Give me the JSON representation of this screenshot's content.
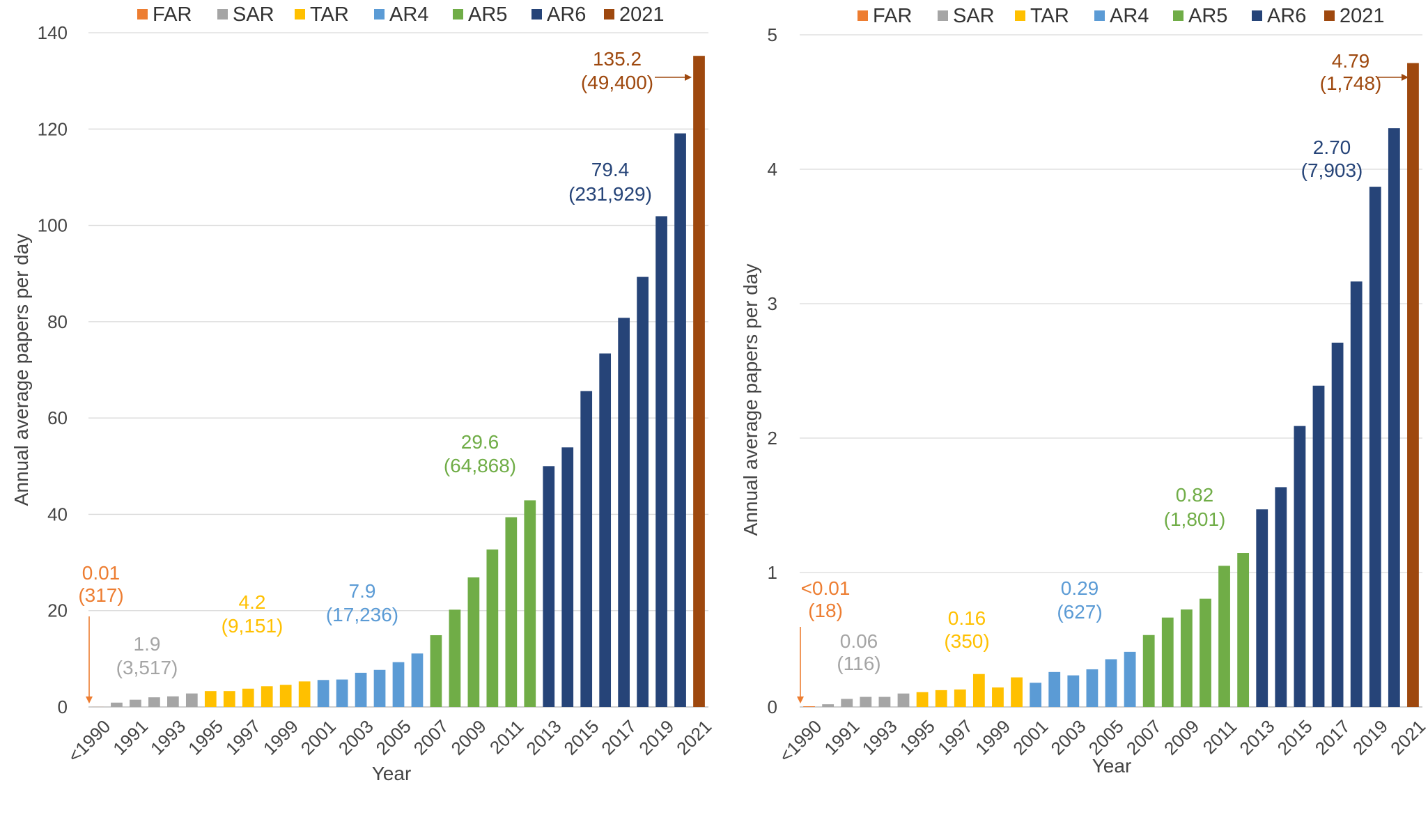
{
  "chart_data": [
    {
      "type": "bar",
      "panel": "left",
      "xlabel": "Year",
      "ylabel": "Annual average papers  per day",
      "ylim": [
        0,
        140
      ],
      "yticks": [
        0,
        20,
        40,
        60,
        80,
        100,
        120,
        140
      ],
      "grid": true,
      "legend_position": "top",
      "legend": [
        "FAR",
        "SAR",
        "TAR",
        "AR4",
        "AR5",
        "AR6",
        "2021"
      ],
      "x_tick_labels": [
        "<1990",
        "1991",
        "1993",
        "1995",
        "1997",
        "1999",
        "2001",
        "2003",
        "2005",
        "2007",
        "2009",
        "2011",
        "2013",
        "2015",
        "2017",
        "2019",
        "2021"
      ],
      "categories": [
        "<1990",
        "1990",
        "1991",
        "1992",
        "1993",
        "1994",
        "1995",
        "1996",
        "1997",
        "1998",
        "1999",
        "2000",
        "2001",
        "2002",
        "2003",
        "2004",
        "2005",
        "2006",
        "2007",
        "2008",
        "2009",
        "2010",
        "2011",
        "2012",
        "2013",
        "2014",
        "2015",
        "2016",
        "2017",
        "2018",
        "2019",
        "2020",
        "2021"
      ],
      "values": [
        0.01,
        0.9,
        1.5,
        2.0,
        2.2,
        2.8,
        3.3,
        3.3,
        3.8,
        4.3,
        4.6,
        5.3,
        5.6,
        5.7,
        7.1,
        7.7,
        9.3,
        11.1,
        14.9,
        20.2,
        26.9,
        32.7,
        39.4,
        42.9,
        50.0,
        53.9,
        65.6,
        73.4,
        80.8,
        89.3,
        101.9,
        119.1,
        135.2
      ],
      "groups": [
        "FAR",
        "SAR",
        "SAR",
        "SAR",
        "SAR",
        "SAR",
        "TAR",
        "TAR",
        "TAR",
        "TAR",
        "TAR",
        "TAR",
        "AR4",
        "AR4",
        "AR4",
        "AR4",
        "AR4",
        "AR4",
        "AR5",
        "AR5",
        "AR5",
        "AR5",
        "AR5",
        "AR5",
        "AR6",
        "AR6",
        "AR6",
        "AR6",
        "AR6",
        "AR6",
        "AR6",
        "AR6",
        "2021"
      ],
      "annotations": [
        {
          "group": "FAR",
          "value": "0.01",
          "count": "(317)"
        },
        {
          "group": "SAR",
          "value": "1.9",
          "count": "(3,517)"
        },
        {
          "group": "TAR",
          "value": "4.2",
          "count": "(9,151)"
        },
        {
          "group": "AR4",
          "value": "7.9",
          "count": "(17,236)"
        },
        {
          "group": "AR5",
          "value": "29.6",
          "count": "(64,868)"
        },
        {
          "group": "AR6",
          "value": "79.4",
          "count": "(231,929)"
        },
        {
          "group": "2021",
          "value": "135.2",
          "count": "(49,400)"
        }
      ]
    },
    {
      "type": "bar",
      "panel": "right",
      "xlabel": "Year",
      "ylabel": "Annual average papers per day",
      "ylim": [
        0,
        5
      ],
      "yticks": [
        0,
        1,
        2,
        3,
        4,
        5
      ],
      "grid": true,
      "legend_position": "top",
      "legend": [
        "FAR",
        "SAR",
        "TAR",
        "AR4",
        "AR5",
        "AR6",
        "2021"
      ],
      "x_tick_labels": [
        "<1990",
        "1991",
        "1993",
        "1995",
        "1997",
        "1999",
        "2001",
        "2003",
        "2005",
        "2007",
        "2009",
        "2011",
        "2013",
        "2015",
        "2017",
        "2019",
        "2021"
      ],
      "categories": [
        "<1990",
        "1990",
        "1991",
        "1992",
        "1993",
        "1994",
        "1995",
        "1996",
        "1997",
        "1998",
        "1999",
        "2000",
        "2001",
        "2002",
        "2003",
        "2004",
        "2005",
        "2006",
        "2007",
        "2008",
        "2009",
        "2010",
        "2011",
        "2012",
        "2013",
        "2014",
        "2015",
        "2016",
        "2017",
        "2018",
        "2019",
        "2020",
        "2021"
      ],
      "values": [
        0.005,
        0.02,
        0.06,
        0.075,
        0.075,
        0.1,
        0.11,
        0.125,
        0.13,
        0.245,
        0.145,
        0.22,
        0.18,
        0.26,
        0.235,
        0.28,
        0.355,
        0.41,
        0.535,
        0.665,
        0.725,
        0.805,
        1.05,
        1.145,
        1.47,
        1.635,
        2.09,
        2.39,
        2.71,
        3.165,
        3.87,
        4.305,
        4.79
      ],
      "groups": [
        "FAR",
        "SAR",
        "SAR",
        "SAR",
        "SAR",
        "SAR",
        "TAR",
        "TAR",
        "TAR",
        "TAR",
        "TAR",
        "TAR",
        "AR4",
        "AR4",
        "AR4",
        "AR4",
        "AR4",
        "AR4",
        "AR5",
        "AR5",
        "AR5",
        "AR5",
        "AR5",
        "AR5",
        "AR6",
        "AR6",
        "AR6",
        "AR6",
        "AR6",
        "AR6",
        "AR6",
        "AR6",
        "2021"
      ],
      "annotations": [
        {
          "group": "FAR",
          "value": "<0.01",
          "count": "(18)"
        },
        {
          "group": "SAR",
          "value": "0.06",
          "count": "(116)"
        },
        {
          "group": "TAR",
          "value": "0.16",
          "count": "(350)"
        },
        {
          "group": "AR4",
          "value": "0.29",
          "count": "(627)"
        },
        {
          "group": "AR5",
          "value": "0.82",
          "count": "(1,801)"
        },
        {
          "group": "AR6",
          "value": "2.70",
          "count": "(7,903)"
        },
        {
          "group": "2021",
          "value": "4.79",
          "count": "(1,748)"
        }
      ]
    }
  ],
  "colors": {
    "FAR": "#ED7D31",
    "SAR": "#A5A5A5",
    "TAR": "#FFC000",
    "AR4": "#5B9BD5",
    "AR5": "#70AD47",
    "AR6": "#264478",
    "2021": "#9E480E"
  }
}
